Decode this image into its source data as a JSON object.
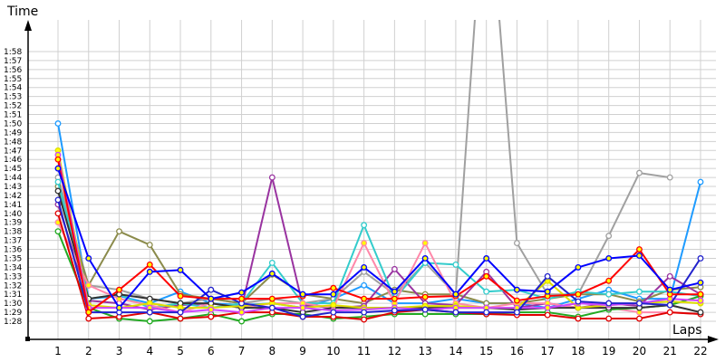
{
  "chart_data": {
    "type": "line",
    "title": "",
    "xlabel": "Laps",
    "ylabel": "Time",
    "x": [
      1,
      2,
      3,
      4,
      5,
      6,
      7,
      8,
      9,
      10,
      11,
      12,
      13,
      14,
      15,
      16,
      17,
      18,
      19,
      20,
      21,
      22
    ],
    "x_tick_labels": [
      "1",
      "2",
      "3",
      "4",
      "5",
      "6",
      "7",
      "8",
      "9",
      "10",
      "11",
      "12",
      "13",
      "14",
      "15",
      "16",
      "17",
      "18",
      "19",
      "20",
      "21",
      "22"
    ],
    "y_tick_labels": [
      "1:28",
      "1:29",
      "1:30",
      "1:31",
      "1:32",
      "1:33",
      "1:34",
      "1:35",
      "1:36",
      "1:37",
      "1:38",
      "1:39",
      "1:40",
      "1:41",
      "1:42",
      "1:43",
      "1:44",
      "1:45",
      "1:46",
      "1:47",
      "1:48",
      "1:49",
      "1:50",
      "1:51",
      "1:52",
      "1:53",
      "1:54",
      "1:55",
      "1:56",
      "1:57",
      "1:58"
    ],
    "ylim": [
      "1:28",
      "1:58"
    ],
    "grid": true,
    "legend": "none",
    "series": [
      {
        "color": "#1e9bff",
        "marker": "#ffffff",
        "values": [
          "1:50",
          "1:30.5",
          "1:30.8",
          "1:30",
          "1:31.3",
          "1:30",
          "1:29.8",
          "1:30",
          "1:29.5",
          "1:30.5",
          "1:32",
          "1:30",
          "1:30",
          "1:30.5",
          "1:30",
          "1:30",
          "1:29.5",
          "1:30.5",
          "1:31.5",
          "1:30.5",
          "1:30.5",
          "1:43.5"
        ]
      },
      {
        "color": "#a0a0a0",
        "marker": "#ffffff",
        "values": [
          "1:44",
          "1:32",
          "1:31.5",
          "1:30.5",
          "1:30",
          "1:30.5",
          "1:30",
          "1:30.5",
          "1:30",
          "1:30.5",
          "1:33.5",
          "1:31",
          "1:34.5",
          "1:31",
          "2:20",
          "1:36.7",
          "1:31",
          "1:31",
          "1:37.5",
          "1:44.5",
          "1:44",
          null
        ]
      },
      {
        "color": "#8b8b4b",
        "marker": "#ffffff",
        "values": [
          "1:43",
          "1:32",
          "1:38",
          "1:36.5",
          "1:31",
          "1:30.5",
          "1:30",
          "1:33.2",
          "1:31",
          "1:30.5",
          "1:30",
          "1:31.5",
          "1:31",
          "1:31",
          "1:30",
          "1:30",
          "1:30.5",
          "1:31",
          "1:31",
          "1:30.2",
          "1:31.5",
          "1:31.8"
        ]
      },
      {
        "color": "#9933a0",
        "marker": "#ffffff",
        "values": [
          "1:41",
          "1:30.3",
          "1:30",
          "1:29.3",
          "1:29.8",
          "1:30",
          "1:29.5",
          "1:44",
          "1:29.8",
          "1:29.5",
          "1:29.7",
          "1:33.8",
          "1:30",
          "1:29.8",
          "1:33.5",
          "1:29.5",
          "1:30",
          "1:29.5",
          "1:30",
          "1:29.7",
          "1:33",
          "1:31"
        ]
      },
      {
        "color": "#33cccc",
        "marker": "#ffffff",
        "values": [
          "1:43.5",
          "1:30.5",
          "1:31",
          "1:29.5",
          "1:30",
          "1:29.5",
          "1:30",
          "1:34.5",
          "1:30",
          "1:30",
          "1:38.7",
          "1:30.5",
          "1:34.5",
          "1:34.3",
          "1:31.3",
          "1:31.5",
          "1:30.5",
          "1:31.3",
          "1:31",
          "1:31.3",
          "1:31.3",
          "1:30.8"
        ]
      },
      {
        "color": "#ff88aa",
        "marker": "#ffff00",
        "values": [
          "1:39",
          "1:32",
          "1:30.5",
          "1:29.8",
          "1:29",
          "1:30",
          "1:29.5",
          "1:30",
          "1:30",
          "1:29.5",
          "1:36.7",
          "1:30",
          "1:36.7",
          "1:30",
          "1:29.5",
          "1:30",
          "1:30",
          "1:29.5",
          "1:29.5",
          "1:29",
          "1:29",
          "1:28.8"
        ]
      },
      {
        "color": "#22aa22",
        "marker": "#ffffff",
        "values": [
          "1:38",
          "1:29.5",
          "1:28.3",
          "1:28",
          "1:28.3",
          "1:28.8",
          "1:28",
          "1:28.8",
          "1:28.8",
          "1:28.3",
          "1:28.5",
          "1:28.8",
          "1:28.8",
          "1:28.8",
          "1:28.8",
          "1:29",
          "1:29",
          "1:28.5",
          "1:29.3",
          "1:29.5",
          "1:29.8",
          "1:30.8"
        ]
      },
      {
        "color": "#e00000",
        "marker": "#ffffff",
        "values": [
          "1:40",
          "1:28.3",
          "1:28.5",
          "1:29",
          "1:28.3",
          "1:28.5",
          "1:29",
          "1:29",
          "1:28.5",
          "1:28.5",
          "1:28.2",
          "1:29",
          "1:29.3",
          "1:29",
          "1:28.8",
          "1:28.7",
          "1:28.7",
          "1:28.3",
          "1:28.3",
          "1:28.3",
          "1:29",
          "1:28.8"
        ]
      },
      {
        "color": "#333333",
        "marker": "#ffffff",
        "values": [
          "1:42.5",
          "1:30.5",
          "1:31",
          "1:30.5",
          "1:30",
          "1:30",
          "1:29.5",
          "1:29.5",
          "1:29",
          "1:29.5",
          "1:29.5",
          "1:29.5",
          "1:29.5",
          "1:29.5",
          "1:29.5",
          "1:29.3",
          "1:29.5",
          "1:29.5",
          "1:29.5",
          "1:29.5",
          "1:29.8",
          "1:29"
        ]
      },
      {
        "color": "#dddd00",
        "marker": "#ffff00",
        "values": [
          "1:47",
          "1:29.8",
          "1:29.5",
          "1:30",
          "1:29.5",
          "1:29.5",
          "1:29.7",
          "1:30",
          "1:29.5",
          "1:29.8",
          "1:29.5",
          "1:29.5",
          "1:29.7",
          "1:29.7",
          "1:29.5",
          "1:29.5",
          "1:32.5",
          "1:29.5",
          "1:29.8",
          "1:30",
          "1:30.2",
          "1:30"
        ]
      },
      {
        "color": "#cc44ff",
        "marker": "#ffff00",
        "values": [
          "1:46.5",
          "1:29.5",
          "1:29.5",
          "1:29.5",
          "1:29",
          "1:29.3",
          "1:29",
          "1:29.5",
          "1:29.5",
          "1:29.2",
          "1:29.3",
          "1:29.5",
          "1:29.3",
          "1:29.5",
          "1:29.5",
          "1:29.5",
          "1:29.5",
          "1:30",
          "1:29.8",
          "1:30",
          "1:30.5",
          "1:30.3"
        ]
      },
      {
        "color": "#2222cc",
        "marker": "#ffffff",
        "values": [
          "1:41.5",
          "1:29",
          "1:29",
          "1:29",
          "1:29",
          "1:31.5",
          "1:30",
          "1:29.5",
          "1:28.5",
          "1:29",
          "1:29",
          "1:29.2",
          "1:29.3",
          "1:29",
          "1:29",
          "1:29",
          "1:33",
          "1:30.2",
          "1:30",
          "1:30",
          "1:29.8",
          "1:35"
        ]
      },
      {
        "color": "#ff0000",
        "marker": "#ffff00",
        "values": [
          "1:46",
          "1:29",
          "1:31.5",
          "1:34.3",
          "1:30.8",
          "1:30.5",
          "1:30.5",
          "1:30.5",
          "1:30.8",
          "1:31.7",
          "1:30.5",
          "1:30.5",
          "1:30.7",
          "1:30.8",
          "1:33",
          "1:30.3",
          "1:30.8",
          "1:31",
          "1:32.5",
          "1:36",
          "1:31",
          "1:31"
        ]
      },
      {
        "color": "#0000ff",
        "marker": "#ffff00",
        "values": [
          "1:45",
          "1:35",
          "1:29.5",
          "1:33.5",
          "1:33.7",
          "1:30.5",
          "1:31.2",
          "1:33.3",
          "1:31",
          "1:31",
          "1:34",
          "1:31.3",
          "1:35",
          "1:31",
          "1:35",
          "1:31.5",
          "1:31.3",
          "1:34",
          "1:35",
          "1:35.3",
          "1:31.5",
          "1:32.3"
        ]
      }
    ]
  }
}
